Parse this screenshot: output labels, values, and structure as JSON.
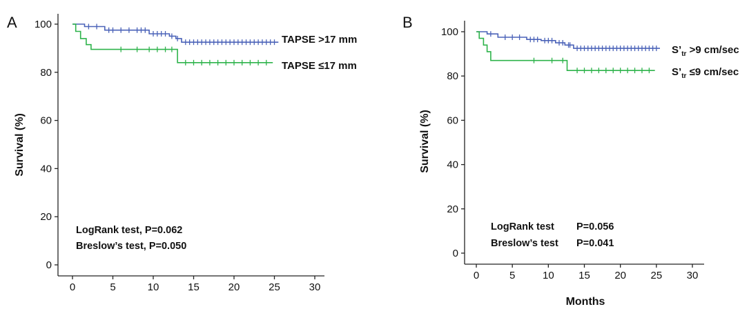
{
  "chart_data": [
    {
      "type": "line",
      "subtype": "kaplan-meier",
      "panel_label": "A",
      "xlabel": "",
      "ylabel": "Survival (%)",
      "xlim": [
        0,
        30
      ],
      "ylim": [
        0,
        100
      ],
      "x_ticks": [
        "0",
        "5",
        "10",
        "15",
        "20",
        "25",
        "30"
      ],
      "y_ticks": [
        "0",
        "20",
        "40",
        "60",
        "80",
        "100"
      ],
      "grid": false,
      "legend_position": "right of curves",
      "annotations": [
        "LogRank test, P=0.062",
        "Breslow’s test, P=0.050"
      ],
      "series": [
        {
          "name": "TAPSE >17 mm",
          "color": "#4a62b8",
          "x": [
            0,
            1.5,
            1.5,
            4,
            4,
            9.5,
            9.5,
            12,
            12,
            12.8,
            12.8,
            13.5,
            13.5,
            25.5
          ],
          "y": [
            100,
            100,
            99,
            99,
            97.5,
            97.5,
            96,
            96,
            95,
            95,
            94,
            94,
            92.5,
            92.5
          ],
          "censor_x": [
            2,
            3,
            4.5,
            5,
            6,
            7,
            8,
            8.5,
            9,
            10,
            10.5,
            11,
            11.5,
            12.3,
            13,
            14,
            14.5,
            15,
            15.5,
            16,
            16.5,
            17,
            17.5,
            18,
            18.5,
            19,
            19.5,
            20,
            20.5,
            21,
            21.5,
            22,
            22.5,
            23,
            23.5,
            24,
            24.5,
            25
          ]
        },
        {
          "name": "TAPSE ≤17 mm",
          "color": "#2db34a",
          "x": [
            0,
            0.4,
            0.4,
            1,
            1,
            1.7,
            1.7,
            2.3,
            2.3,
            13,
            13,
            24.8
          ],
          "y": [
            100,
            100,
            97,
            97,
            94,
            94,
            91.5,
            91.5,
            89.5,
            89.5,
            84,
            84
          ],
          "censor_x": [
            6,
            8,
            9.5,
            10.5,
            11.5,
            12.3,
            14,
            15,
            16,
            17,
            18,
            19,
            20,
            21,
            22,
            23,
            24
          ]
        }
      ]
    },
    {
      "type": "line",
      "subtype": "kaplan-meier",
      "panel_label": "B",
      "xlabel": "Months",
      "ylabel": "Survival (%)",
      "xlim": [
        0,
        30
      ],
      "ylim": [
        0,
        100
      ],
      "x_ticks": [
        "0",
        "5",
        "10",
        "15",
        "20",
        "25",
        "30"
      ],
      "y_ticks": [
        "0",
        "20",
        "40",
        "60",
        "80",
        "100"
      ],
      "grid": false,
      "legend_position": "right of curves",
      "annotations": [
        {
          "label": "LogRank test",
          "value": "P=0.056"
        },
        {
          "label": "Breslow’s test",
          "value": "P=0.041"
        }
      ],
      "series": [
        {
          "name": "S’tr >9 cm/sec",
          "name_parts": [
            "S’",
            "tr",
            " >9 cm/sec"
          ],
          "color": "#4a62b8",
          "x": [
            0,
            1.5,
            1.5,
            3,
            3,
            7,
            7,
            9,
            9,
            11,
            11,
            12.3,
            12.3,
            13.5,
            13.5,
            25.5
          ],
          "y": [
            100,
            100,
            99,
            99,
            97.5,
            97.5,
            96.5,
            96.5,
            96,
            96,
            95,
            95,
            94,
            94,
            92.5,
            92.5
          ],
          "censor_x": [
            2,
            4,
            5,
            6,
            7.5,
            8,
            8.5,
            9.5,
            10,
            10.5,
            11.5,
            12,
            12.8,
            13,
            14,
            14.5,
            15,
            15.5,
            16,
            16.5,
            17,
            17.5,
            18,
            18.5,
            19,
            19.5,
            20,
            20.5,
            21,
            21.5,
            22,
            22.5,
            23,
            23.5,
            24,
            24.5,
            25
          ]
        },
        {
          "name": "S’tr ≤9 cm/sec",
          "name_parts": [
            "S’",
            "tr",
            " ≤9 cm/sec"
          ],
          "color": "#2db34a",
          "x": [
            0,
            0.4,
            0.4,
            1,
            1,
            1.5,
            1.5,
            2,
            2,
            12.6,
            12.6,
            24.8
          ],
          "y": [
            100,
            100,
            97,
            97,
            94,
            94,
            91,
            91,
            87,
            87,
            82.5,
            82.5
          ],
          "censor_x": [
            8,
            10.5,
            12,
            14,
            15,
            16,
            17,
            18,
            19,
            20,
            21,
            22,
            23,
            24
          ]
        }
      ]
    }
  ]
}
